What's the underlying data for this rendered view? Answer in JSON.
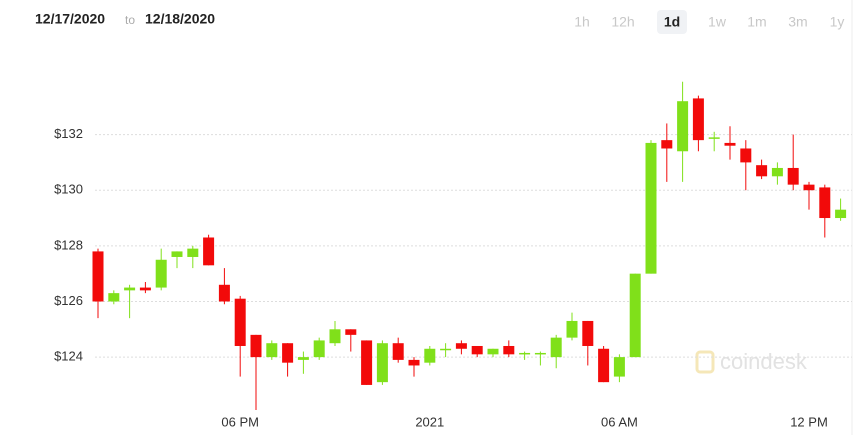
{
  "header": {
    "from": "12/17/2020",
    "to_word": "to",
    "until": "12/18/2020",
    "ranges": [
      "1h",
      "12h",
      "1d",
      "1w",
      "1m",
      "3m",
      "1y"
    ],
    "active_range": 2
  },
  "chart_data": {
    "type": "candlestick",
    "watermark": "coindesk",
    "categories": [
      null,
      null,
      null,
      null,
      null,
      null,
      null,
      null,
      null,
      "06 PM",
      null,
      null,
      null,
      null,
      null,
      null,
      null,
      null,
      null,
      null,
      null,
      "2021",
      null,
      null,
      null,
      null,
      null,
      null,
      null,
      null,
      null,
      null,
      null,
      "06 AM",
      null,
      null,
      null,
      null,
      null,
      null,
      null,
      null,
      null,
      null,
      null,
      "12 PM",
      null,
      null
    ],
    "open": [
      127.8,
      126.0,
      126.4,
      126.5,
      126.5,
      127.6,
      127.6,
      128.3,
      126.6,
      126.1,
      124.8,
      124.0,
      124.5,
      123.9,
      124.0,
      124.5,
      125.0,
      124.6,
      123.1,
      124.5,
      123.9,
      123.8,
      124.25,
      124.5,
      124.4,
      124.1,
      124.4,
      124.1,
      124.1,
      124.0,
      124.7,
      125.3,
      124.3,
      123.3,
      124.0,
      127.0,
      131.8,
      131.4,
      133.3,
      131.85,
      131.7,
      131.5,
      130.9,
      130.5,
      130.8,
      130.2,
      130.1,
      129.0
    ],
    "high": [
      127.9,
      126.4,
      126.6,
      126.7,
      127.9,
      127.8,
      128.0,
      128.4,
      127.2,
      126.2,
      124.8,
      124.6,
      124.5,
      124.2,
      124.7,
      125.3,
      125.0,
      124.6,
      124.6,
      124.7,
      124.0,
      124.4,
      124.5,
      124.6,
      124.4,
      124.3,
      124.6,
      124.2,
      124.2,
      124.8,
      125.6,
      125.3,
      124.4,
      124.1,
      127.0,
      131.8,
      132.4,
      133.9,
      133.4,
      132.1,
      132.3,
      131.8,
      131.1,
      131.0,
      132.0,
      130.3,
      130.2,
      129.7
    ],
    "low": [
      125.4,
      125.9,
      125.4,
      126.3,
      126.4,
      127.2,
      127.2,
      127.3,
      125.9,
      123.3,
      122.1,
      123.9,
      123.3,
      123.4,
      123.9,
      124.4,
      124.2,
      123.0,
      123.0,
      123.8,
      123.3,
      123.7,
      124.0,
      124.1,
      124.0,
      124.0,
      124.0,
      123.9,
      123.7,
      123.6,
      124.6,
      123.7,
      123.1,
      123.1,
      124.0,
      127.0,
      130.3,
      130.3,
      131.4,
      131.4,
      131.1,
      130.0,
      130.4,
      130.2,
      130.0,
      129.3,
      128.3,
      128.9
    ],
    "close": [
      126.0,
      126.3,
      126.5,
      126.4,
      127.5,
      127.8,
      127.9,
      127.3,
      126.0,
      124.4,
      124.0,
      124.5,
      123.8,
      124.0,
      124.6,
      125.0,
      124.8,
      123.0,
      124.5,
      123.9,
      123.7,
      124.3,
      124.3,
      124.3,
      124.1,
      124.3,
      124.1,
      124.15,
      124.15,
      124.7,
      125.3,
      124.4,
      123.1,
      124.0,
      127.0,
      131.7,
      131.5,
      133.2,
      131.8,
      131.9,
      131.6,
      131.0,
      130.5,
      130.8,
      130.2,
      130.0,
      129.0,
      129.3
    ],
    "up_color": "#80e01a",
    "down_color": "#f20a0a",
    "ylim": [
      121.2,
      135.4
    ],
    "yticks": [
      {
        "value": 124,
        "label": "$124"
      },
      {
        "value": 126,
        "label": "$126"
      },
      {
        "value": 128,
        "label": "$128"
      },
      {
        "value": 130,
        "label": "$130"
      },
      {
        "value": 132,
        "label": "$132"
      }
    ],
    "grid": true
  }
}
